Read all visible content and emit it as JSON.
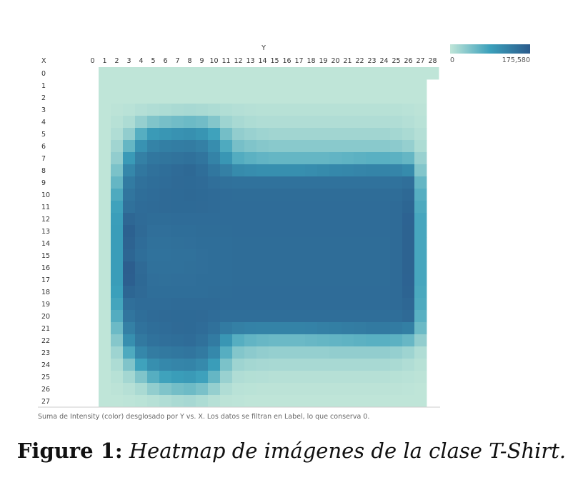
{
  "chart_data": {
    "type": "heatmap",
    "title": "",
    "xlabel": "Y",
    "ylabel": "X",
    "x_categories": [
      0,
      1,
      2,
      3,
      4,
      5,
      6,
      7,
      8,
      9,
      10,
      11,
      12,
      13,
      14,
      15,
      16,
      17,
      18,
      19,
      20,
      21,
      22,
      23,
      24,
      25,
      26,
      27,
      28
    ],
    "y_categories": [
      0,
      1,
      2,
      3,
      4,
      5,
      6,
      7,
      8,
      9,
      10,
      11,
      12,
      13,
      14,
      15,
      16,
      17,
      18,
      19,
      20,
      21,
      22,
      23,
      24,
      25,
      26,
      27
    ],
    "value_range": [
      0,
      175580
    ],
    "colors": {
      "low": "#bfe5d8",
      "mid": "#3ba0bb",
      "high": "#2b5b8c"
    },
    "legend": {
      "min_label": "0",
      "max_label": "175,580",
      "position": "top-right"
    },
    "missing_cells": [
      {
        "row": 0,
        "cols": [
          0
        ]
      },
      {
        "row": 1,
        "cols": [
          0,
          28
        ]
      },
      {
        "row": 2,
        "cols": [
          0,
          28
        ]
      },
      {
        "row": 3,
        "cols": [
          0,
          28
        ]
      },
      {
        "row": 4,
        "cols": [
          0,
          28
        ]
      },
      {
        "row": 5,
        "cols": [
          0,
          28
        ]
      },
      {
        "row": 6,
        "cols": [
          0,
          28
        ]
      },
      {
        "row": 7,
        "cols": [
          0,
          28
        ]
      },
      {
        "row": 8,
        "cols": [
          0,
          28
        ]
      },
      {
        "row": 9,
        "cols": [
          0,
          28
        ]
      },
      {
        "row": 10,
        "cols": [
          0,
          28
        ]
      },
      {
        "row": 11,
        "cols": [
          0,
          28
        ]
      },
      {
        "row": 12,
        "cols": [
          0,
          28
        ]
      },
      {
        "row": 13,
        "cols": [
          0,
          28
        ]
      },
      {
        "row": 14,
        "cols": [
          0,
          28
        ]
      },
      {
        "row": 15,
        "cols": [
          0,
          28
        ]
      },
      {
        "row": 16,
        "cols": [
          0,
          28
        ]
      },
      {
        "row": 17,
        "cols": [
          0,
          28
        ]
      },
      {
        "row": 18,
        "cols": [
          0,
          28
        ]
      },
      {
        "row": 19,
        "cols": [
          0,
          28
        ]
      },
      {
        "row": 20,
        "cols": [
          0,
          28
        ]
      },
      {
        "row": 21,
        "cols": [
          0,
          28
        ]
      },
      {
        "row": 22,
        "cols": [
          0,
          28
        ]
      },
      {
        "row": 23,
        "cols": [
          0,
          28
        ]
      },
      {
        "row": 24,
        "cols": [
          0,
          28
        ]
      },
      {
        "row": 25,
        "cols": [
          0,
          28
        ]
      },
      {
        "row": 26,
        "cols": [
          0,
          28
        ]
      },
      {
        "row": 27,
        "cols": [
          0,
          28
        ]
      }
    ],
    "values": [
      [
        0,
        0,
        0,
        0,
        0,
        0,
        0,
        0,
        0,
        0,
        0,
        0,
        0,
        0,
        0,
        0,
        0,
        0,
        0,
        0,
        0,
        0,
        0,
        0,
        0,
        0,
        0,
        0,
        0
      ],
      [
        0,
        0,
        0,
        0,
        0,
        0,
        0,
        0,
        0,
        0,
        0,
        0,
        0,
        0,
        0,
        0,
        0,
        0,
        0,
        0,
        0,
        0,
        0,
        0,
        0,
        0,
        0,
        0,
        0
      ],
      [
        0,
        0,
        0,
        0,
        0,
        0,
        0,
        0,
        0,
        0,
        0,
        0,
        0,
        0,
        0,
        0,
        0,
        0,
        0,
        0,
        0,
        0,
        0,
        0,
        0,
        0,
        0,
        0,
        0
      ],
      [
        0,
        0,
        2000,
        4000,
        7000,
        10000,
        12000,
        14000,
        15000,
        14000,
        12000,
        9000,
        7000,
        6000,
        5000,
        5000,
        5000,
        5000,
        5000,
        5000,
        5000,
        5000,
        5000,
        5000,
        5000,
        5000,
        4000,
        2000,
        0
      ],
      [
        0,
        0,
        5000,
        12000,
        28000,
        42000,
        48000,
        52000,
        55000,
        52000,
        40000,
        22000,
        15000,
        12000,
        10000,
        10000,
        10000,
        10000,
        10000,
        10000,
        10000,
        10000,
        10000,
        10000,
        10000,
        10000,
        7000,
        4000,
        0
      ],
      [
        0,
        0,
        10000,
        30000,
        70000,
        95000,
        100000,
        105000,
        108000,
        102000,
        85000,
        50000,
        30000,
        25000,
        22000,
        20000,
        20000,
        20000,
        20000,
        20000,
        20000,
        20000,
        20000,
        20000,
        20000,
        18000,
        14000,
        7000,
        0
      ],
      [
        0,
        0,
        20000,
        60000,
        105000,
        125000,
        130000,
        132000,
        134000,
        128000,
        112000,
        75000,
        48000,
        42000,
        38000,
        36000,
        36000,
        36000,
        36000,
        36000,
        36000,
        36000,
        36000,
        36000,
        36000,
        34000,
        28000,
        12000,
        0
      ],
      [
        0,
        0,
        30000,
        95000,
        128000,
        140000,
        143000,
        145000,
        147000,
        142000,
        125000,
        100000,
        72000,
        66000,
        62000,
        60000,
        60000,
        60000,
        60000,
        60000,
        62000,
        64000,
        66000,
        68000,
        68000,
        66000,
        60000,
        25000,
        0
      ],
      [
        0,
        0,
        45000,
        120000,
        140000,
        148000,
        152000,
        155000,
        158000,
        152000,
        140000,
        128000,
        115000,
        112000,
        110000,
        110000,
        110000,
        110000,
        112000,
        115000,
        118000,
        120000,
        122000,
        124000,
        124000,
        122000,
        115000,
        40000,
        0
      ],
      [
        0,
        0,
        60000,
        135000,
        148000,
        152000,
        154000,
        156000,
        157000,
        155000,
        150000,
        148000,
        146000,
        146000,
        146000,
        146000,
        146000,
        146000,
        146000,
        146000,
        146000,
        146000,
        146000,
        146000,
        146000,
        146000,
        150000,
        60000,
        0
      ],
      [
        0,
        0,
        75000,
        142000,
        152000,
        154000,
        156000,
        157000,
        158000,
        157000,
        155000,
        154000,
        153000,
        153000,
        153000,
        153000,
        153000,
        153000,
        153000,
        153000,
        153000,
        153000,
        153000,
        153000,
        153000,
        153000,
        158000,
        70000,
        0
      ],
      [
        0,
        0,
        85000,
        148000,
        154000,
        155000,
        156000,
        157000,
        157000,
        156000,
        155000,
        154000,
        154000,
        154000,
        154000,
        154000,
        154000,
        154000,
        154000,
        154000,
        154000,
        154000,
        154000,
        154000,
        154000,
        155000,
        162000,
        75000,
        0
      ],
      [
        0,
        0,
        90000,
        160000,
        155000,
        153000,
        153000,
        154000,
        154000,
        154000,
        154000,
        154000,
        154000,
        154000,
        154000,
        154000,
        154000,
        154000,
        154000,
        154000,
        154000,
        154000,
        154000,
        154000,
        154000,
        155000,
        165000,
        80000,
        0
      ],
      [
        0,
        0,
        92000,
        168000,
        156000,
        150000,
        150000,
        151000,
        152000,
        153000,
        153000,
        153000,
        154000,
        154000,
        154000,
        154000,
        154000,
        154000,
        154000,
        154000,
        154000,
        154000,
        154000,
        154000,
        154000,
        155000,
        166000,
        80000,
        0
      ],
      [
        0,
        0,
        92000,
        166000,
        154000,
        148000,
        148000,
        149000,
        150000,
        151000,
        152000,
        152000,
        153000,
        153000,
        153000,
        153000,
        153000,
        153000,
        153000,
        153000,
        153000,
        153000,
        153000,
        153000,
        153000,
        155000,
        166000,
        80000,
        0
      ],
      [
        0,
        0,
        92000,
        162000,
        152000,
        146000,
        146000,
        147000,
        148000,
        150000,
        151000,
        152000,
        153000,
        153000,
        153000,
        153000,
        153000,
        153000,
        153000,
        153000,
        153000,
        153000,
        153000,
        153000,
        153000,
        155000,
        166000,
        80000,
        0
      ],
      [
        0,
        0,
        92000,
        172000,
        156000,
        148000,
        147000,
        148000,
        149000,
        150000,
        151000,
        152000,
        153000,
        153000,
        153000,
        153000,
        153000,
        153000,
        153000,
        153000,
        153000,
        153000,
        153000,
        153000,
        153000,
        155000,
        166000,
        80000,
        0
      ],
      [
        0,
        0,
        92000,
        170000,
        158000,
        150000,
        149000,
        150000,
        150000,
        151000,
        152000,
        152000,
        153000,
        153000,
        153000,
        153000,
        153000,
        153000,
        153000,
        153000,
        153000,
        153000,
        153000,
        153000,
        153000,
        155000,
        165000,
        80000,
        0
      ],
      [
        0,
        0,
        88000,
        162000,
        156000,
        152000,
        151000,
        152000,
        152000,
        152000,
        153000,
        153000,
        154000,
        154000,
        154000,
        154000,
        154000,
        154000,
        154000,
        154000,
        154000,
        154000,
        154000,
        154000,
        154000,
        155000,
        164000,
        78000,
        0
      ],
      [
        0,
        0,
        82000,
        150000,
        154000,
        154000,
        154000,
        155000,
        155000,
        155000,
        155000,
        154000,
        154000,
        154000,
        154000,
        154000,
        154000,
        154000,
        154000,
        154000,
        154000,
        154000,
        154000,
        154000,
        154000,
        155000,
        160000,
        75000,
        0
      ],
      [
        0,
        0,
        72000,
        142000,
        152000,
        155000,
        156000,
        157000,
        157000,
        156000,
        154000,
        152000,
        151000,
        151000,
        151000,
        151000,
        151000,
        151000,
        151000,
        151000,
        151000,
        151000,
        151000,
        151000,
        151000,
        152000,
        156000,
        68000,
        0
      ],
      [
        0,
        0,
        55000,
        128000,
        146000,
        152000,
        154000,
        156000,
        157000,
        154000,
        148000,
        135000,
        128000,
        126000,
        125000,
        125000,
        125000,
        125000,
        126000,
        128000,
        130000,
        132000,
        134000,
        136000,
        136000,
        135000,
        130000,
        55000,
        0
      ],
      [
        0,
        0,
        38000,
        110000,
        138000,
        146000,
        150000,
        152000,
        154000,
        148000,
        135000,
        100000,
        70000,
        62000,
        58000,
        56000,
        56000,
        56000,
        58000,
        60000,
        62000,
        64000,
        66000,
        68000,
        68000,
        66000,
        58000,
        30000,
        0
      ],
      [
        0,
        0,
        22000,
        75000,
        120000,
        134000,
        138000,
        140000,
        142000,
        136000,
        118000,
        70000,
        40000,
        34000,
        30000,
        28000,
        28000,
        28000,
        28000,
        28000,
        30000,
        30000,
        30000,
        30000,
        30000,
        28000,
        22000,
        10000,
        0
      ],
      [
        0,
        0,
        12000,
        42000,
        85000,
        110000,
        118000,
        122000,
        124000,
        116000,
        92000,
        45000,
        22000,
        18000,
        16000,
        15000,
        15000,
        15000,
        15000,
        15000,
        15000,
        15000,
        15000,
        15000,
        15000,
        14000,
        10000,
        5000,
        0
      ],
      [
        0,
        0,
        5000,
        18000,
        42000,
        70000,
        85000,
        92000,
        95000,
        86000,
        60000,
        25000,
        10000,
        8000,
        7000,
        6000,
        6000,
        6000,
        6000,
        6000,
        6000,
        6000,
        6000,
        6000,
        6000,
        5000,
        4000,
        2000,
        0
      ],
      [
        0,
        0,
        2000,
        6000,
        14000,
        30000,
        42000,
        50000,
        54000,
        46000,
        28000,
        10000,
        4000,
        3000,
        2000,
        2000,
        2000,
        2000,
        2000,
        2000,
        2000,
        2000,
        2000,
        2000,
        2000,
        2000,
        1000,
        0,
        0
      ],
      [
        0,
        0,
        0,
        1000,
        3000,
        6000,
        10000,
        14000,
        16000,
        12000,
        6000,
        2000,
        1000,
        0,
        0,
        0,
        0,
        0,
        0,
        0,
        0,
        0,
        0,
        0,
        0,
        0,
        0,
        0,
        0
      ]
    ]
  },
  "footnote": "Suma de Intensity (color) desglosado por Y vs. X. Los datos se filtran en Label, lo que conserva 0.",
  "caption": {
    "label": "Figure 1:",
    "text": "Heatmap de imágenes de la clase T-Shirt."
  }
}
